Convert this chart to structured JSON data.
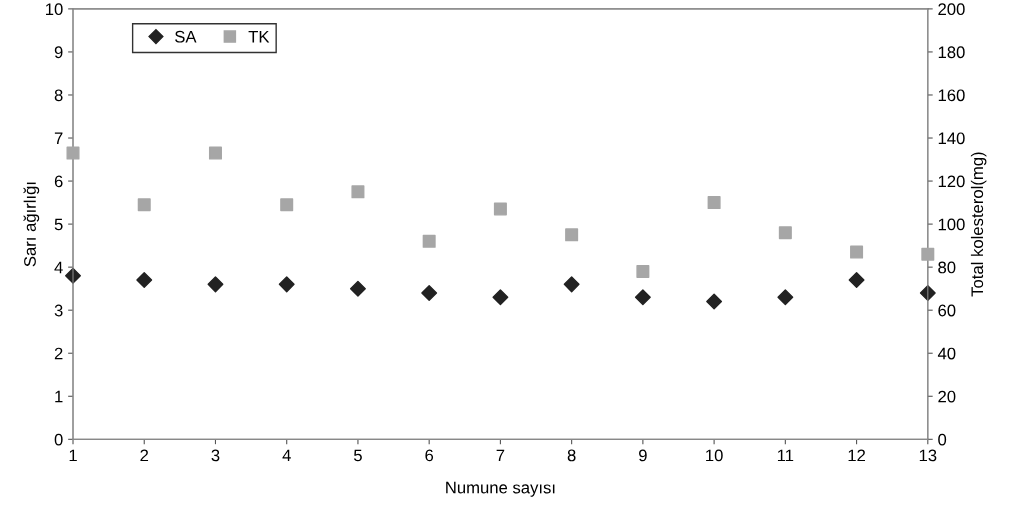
{
  "chart_data": {
    "type": "scatter",
    "xlabel": "Numune sayısı",
    "ylabel": "Sarı ağırlığı",
    "y2label": "Total kolesterol(mg)",
    "x": [
      1,
      2,
      3,
      4,
      5,
      6,
      7,
      8,
      9,
      10,
      11,
      12,
      13
    ],
    "series": [
      {
        "name": "SA",
        "color": "#222222",
        "marker": "diamond",
        "values": [
          3.8,
          3.7,
          3.6,
          3.6,
          3.5,
          3.4,
          3.3,
          3.6,
          3.3,
          3.2,
          3.3,
          3.7,
          3.4
        ]
      },
      {
        "name": "TK",
        "color": "#a6a6a6",
        "marker": "square",
        "axis": "y2",
        "values": [
          133,
          109,
          133,
          109,
          115,
          92,
          107,
          95,
          78,
          110,
          96,
          87,
          86
        ]
      }
    ],
    "xlim": [
      1,
      13
    ],
    "xticks": [
      1,
      2,
      3,
      4,
      5,
      6,
      7,
      8,
      9,
      10,
      11,
      12,
      13
    ],
    "ylim": [
      0,
      10
    ],
    "yticks": [
      0,
      1,
      2,
      3,
      4,
      5,
      6,
      7,
      8,
      9,
      10
    ],
    "y2lim": [
      0,
      200
    ],
    "y2ticks": [
      0,
      20,
      40,
      60,
      80,
      100,
      120,
      140,
      160,
      180,
      200
    ],
    "grid": false,
    "legend": "top left"
  }
}
